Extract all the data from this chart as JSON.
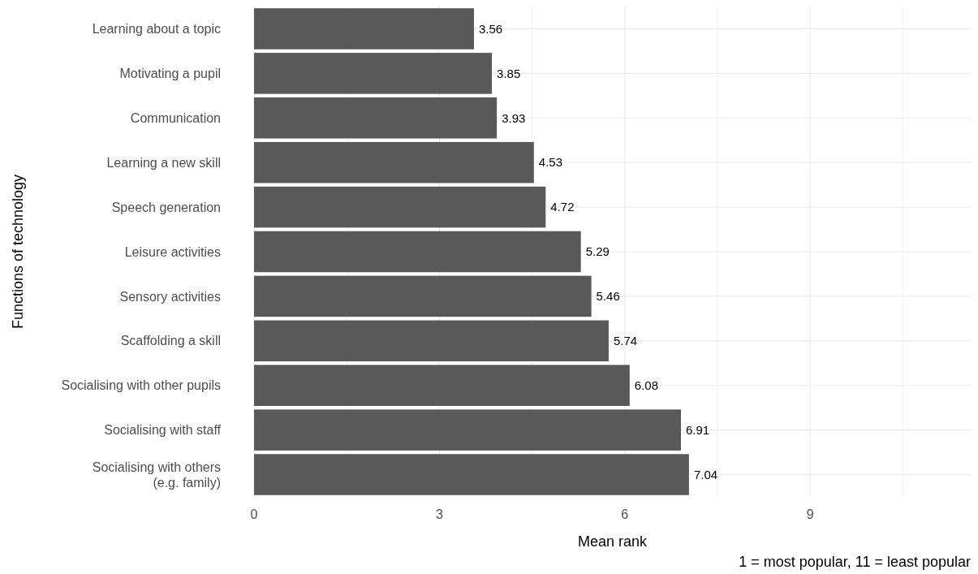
{
  "chart_data": {
    "type": "bar",
    "orientation": "horizontal",
    "xlabel": "Mean rank",
    "ylabel": "Functions of technology",
    "categories": [
      "Learning about a topic",
      "Motivating a pupil",
      "Communication",
      "Learning a new skill",
      "Speech generation",
      "Leisure activities",
      "Sensory activities",
      "Scaffolding a skill",
      "Socialising with other pupils",
      "Socialising with staff",
      "Socialising with others\n(e.g. family)"
    ],
    "values": [
      3.56,
      3.85,
      3.93,
      4.53,
      4.72,
      5.29,
      5.46,
      5.74,
      6.08,
      6.91,
      7.04
    ],
    "color": "#595959",
    "xlim": [
      0,
      11.6
    ],
    "xticks": [
      0,
      {
        "value": 1.5,
        "label": null
      },
      3,
      {
        "value": 4.5,
        "label": null
      },
      6,
      {
        "value": 7.5,
        "label": null
      },
      9,
      {
        "value": 10.5,
        "label": null
      }
    ],
    "grid": true,
    "data_labels": true,
    "annotations": [
      "1 = most popular, 11 = least popular"
    ]
  }
}
